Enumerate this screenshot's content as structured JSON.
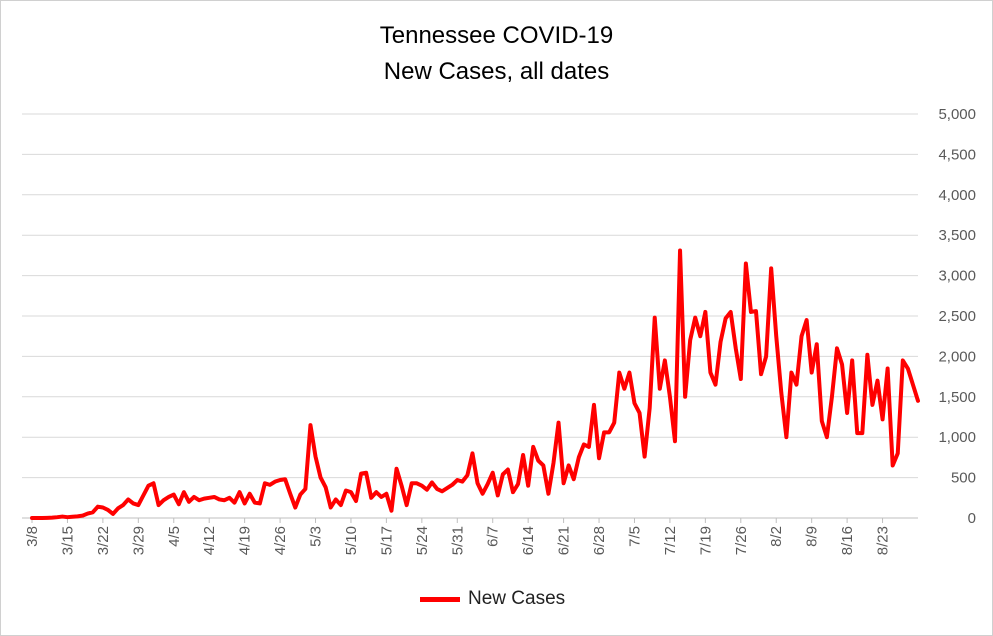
{
  "chart_data": {
    "type": "line",
    "title_line1": "Tennessee COVID-19",
    "title_line2": "New Cases, all dates",
    "xlabel": "",
    "ylabel": "",
    "ylim": [
      0,
      5000
    ],
    "yticks": [
      "0",
      "500",
      "1,000",
      "1,500",
      "2,000",
      "2,500",
      "3,000",
      "3,500",
      "4,000",
      "4,500",
      "5,000"
    ],
    "y_axis_side": "right",
    "grid": true,
    "legend_position": "bottom",
    "x_tick_labels": [
      "3/8",
      "3/15",
      "3/22",
      "3/29",
      "4/5",
      "4/12",
      "4/19",
      "4/26",
      "5/3",
      "5/10",
      "5/17",
      "5/24",
      "5/31",
      "6/7",
      "6/14",
      "6/21",
      "6/28",
      "7/5",
      "7/12",
      "7/19",
      "7/26",
      "8/2",
      "8/9",
      "8/16",
      "8/23"
    ],
    "line_color": "#ff0000",
    "series": [
      {
        "name": "New Cases",
        "values": [
          0,
          0,
          0,
          2,
          5,
          10,
          18,
          10,
          15,
          20,
          30,
          55,
          70,
          140,
          130,
          100,
          50,
          120,
          160,
          230,
          180,
          160,
          280,
          400,
          430,
          160,
          220,
          260,
          290,
          170,
          320,
          200,
          260,
          220,
          240,
          250,
          260,
          230,
          220,
          250,
          190,
          320,
          180,
          300,
          190,
          180,
          430,
          410,
          450,
          470,
          480,
          300,
          130,
          290,
          360,
          1150,
          760,
          500,
          380,
          130,
          230,
          160,
          340,
          320,
          210,
          550,
          560,
          250,
          320,
          260,
          300,
          90,
          610,
          400,
          160,
          430,
          430,
          400,
          350,
          440,
          360,
          330,
          370,
          410,
          470,
          450,
          530,
          800,
          430,
          300,
          420,
          560,
          280,
          540,
          600,
          320,
          420,
          780,
          400,
          880,
          710,
          650,
          300,
          680,
          1180,
          430,
          650,
          480,
          750,
          910,
          880,
          1400,
          740,
          1060,
          1060,
          1180,
          1800,
          1600,
          1800,
          1420,
          1300,
          760,
          1360,
          2480,
          1600,
          1950,
          1500,
          950,
          3310,
          1500,
          2200,
          2480,
          2250,
          2550,
          1800,
          1650,
          2180,
          2470,
          2550,
          2100,
          1720,
          3150,
          2550,
          2560,
          1780,
          2000,
          3090,
          2250,
          1550,
          1000,
          1800,
          1650,
          2250,
          2450,
          1800,
          2150,
          1200,
          1000,
          1500,
          2100,
          1900,
          1300,
          1950,
          1050,
          1050,
          2020,
          1400,
          1700,
          1220,
          1850,
          650,
          800,
          1950,
          1850,
          1650,
          1450
        ]
      }
    ]
  }
}
